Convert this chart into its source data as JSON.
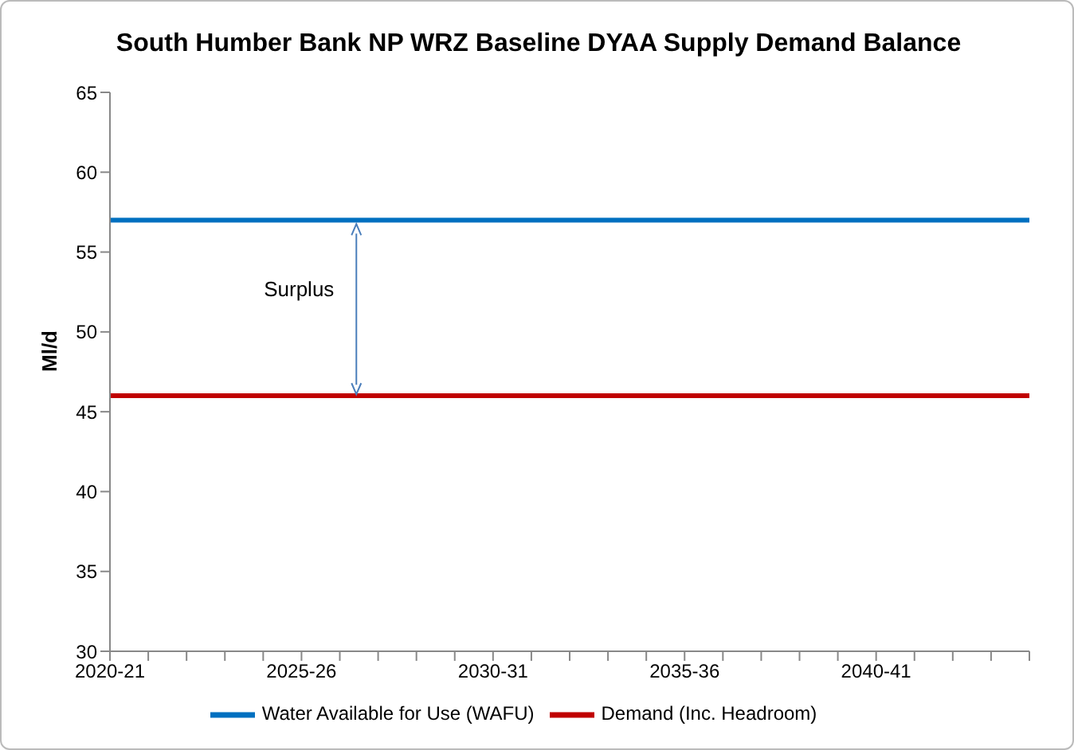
{
  "chart_data": {
    "type": "line",
    "title": "South Humber Bank NP WRZ Baseline DYAA Supply Demand Balance",
    "ylabel": "Ml/d",
    "categories": [
      "2020-21",
      null,
      null,
      null,
      null,
      "2025-26",
      null,
      null,
      null,
      null,
      "2030-31",
      null,
      null,
      null,
      null,
      "2035-36",
      null,
      null,
      null,
      null,
      "2040-41",
      null,
      null,
      null,
      null
    ],
    "series": [
      {
        "name": "Water Available for Use (WAFU)",
        "color": "#0070c0",
        "values": [
          57,
          57,
          57,
          57,
          57,
          57,
          57,
          57,
          57,
          57,
          57,
          57,
          57,
          57,
          57,
          57,
          57,
          57,
          57,
          57,
          57,
          57,
          57,
          57,
          57
        ]
      },
      {
        "name": "Demand (Inc. Headroom)",
        "color": "#c00000",
        "values": [
          46,
          46,
          46,
          46,
          46,
          46,
          46,
          46,
          46,
          46,
          46,
          46,
          46,
          46,
          46,
          46,
          46,
          46,
          46,
          46,
          46,
          46,
          46,
          46,
          46
        ]
      }
    ],
    "ylim": [
      30,
      65
    ],
    "yticks": [
      30,
      35,
      40,
      45,
      50,
      55,
      60,
      65
    ],
    "grid": false,
    "legend": "bottom",
    "marker": "none",
    "line_style": "solid",
    "annotations": [
      "Surplus"
    ]
  }
}
